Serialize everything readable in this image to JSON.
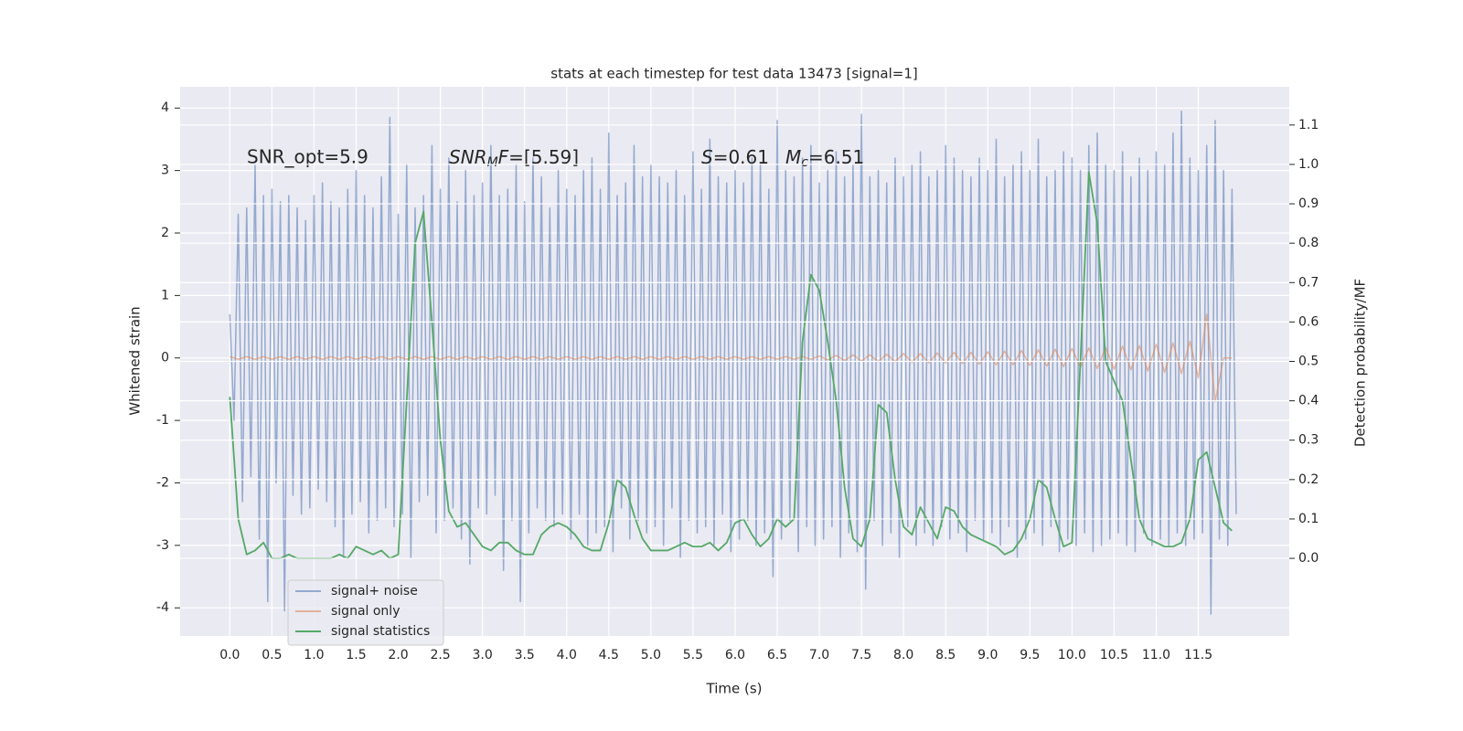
{
  "chart_data": {
    "type": "line",
    "title": "stats at each timestep for test data 13473 [signal=1]",
    "x_label": "Time (s)",
    "y_label": "Whitened strain",
    "y2_label": "Detection probability/MF",
    "annotations": [
      "SNR_opt=5.9",
      [
        "SNR",
        "M",
        "F",
        "=[5.59]"
      ],
      [
        "S",
        "=0.61"
      ],
      [
        "M",
        "c",
        "=6.51"
      ]
    ],
    "xlim": [
      -0.59,
      12.58
    ],
    "xticks": [
      {
        "value": 0,
        "label": "0.0"
      },
      0.5,
      {
        "value": 1,
        "label": "1.0"
      },
      1.5,
      {
        "value": 2,
        "label": "2.0"
      },
      2.5,
      {
        "value": 3,
        "label": "3.0"
      },
      3.5,
      {
        "value": 4,
        "label": "4.0"
      },
      4.5,
      {
        "value": 5,
        "label": "5.0"
      },
      5.5,
      {
        "value": 6,
        "label": "6.0"
      },
      6.5,
      {
        "value": 7,
        "label": "7.0"
      },
      7.5,
      {
        "value": 8,
        "label": "8.0"
      },
      8.5,
      {
        "value": 9,
        "label": "9.0"
      },
      9.5,
      {
        "value": 10,
        "label": "10.0"
      },
      10.5,
      {
        "value": 11,
        "label": "11.0"
      },
      11.5
    ],
    "ylim": [
      -4.45,
      4.34
    ],
    "yticks": [
      -4,
      -3,
      -2,
      -1,
      0,
      1,
      2,
      3,
      4
    ],
    "y2lim": [
      -0.197,
      1.197
    ],
    "y2ticks": [
      {
        "value": 0,
        "label": "0.0"
      },
      0.1,
      0.2,
      0.3,
      0.4,
      0.5,
      0.6,
      0.7,
      0.8,
      0.9,
      {
        "value": 1,
        "label": "1.0"
      },
      1.1
    ],
    "grid": true,
    "legend": "lower left",
    "series": [
      {
        "name": "signal+ noise",
        "color": "#4c72b0",
        "x": [
          0,
          0.05,
          0.1,
          0.15,
          0.2,
          0.25,
          0.3,
          0.35,
          0.4,
          0.45,
          0.5,
          0.55,
          0.6,
          0.65,
          0.7,
          0.75,
          0.8,
          0.85,
          0.9,
          0.95,
          1,
          1.05,
          1.1,
          1.15,
          1.2,
          1.25,
          1.3,
          1.35,
          1.4,
          1.45,
          1.5,
          1.55,
          1.6,
          1.65,
          1.7,
          1.75,
          1.8,
          1.85,
          1.9,
          1.95,
          2,
          2.05,
          2.1,
          2.15,
          2.2,
          2.25,
          2.3,
          2.35,
          2.4,
          2.45,
          2.5,
          2.55,
          2.6,
          2.65,
          2.7,
          2.75,
          2.8,
          2.85,
          2.9,
          2.95,
          3,
          3.05,
          3.1,
          3.15,
          3.2,
          3.25,
          3.3,
          3.35,
          3.4,
          3.45,
          3.5,
          3.55,
          3.6,
          3.65,
          3.7,
          3.75,
          3.8,
          3.85,
          3.9,
          3.95,
          4,
          4.05,
          4.1,
          4.15,
          4.2,
          4.25,
          4.3,
          4.35,
          4.4,
          4.45,
          4.5,
          4.55,
          4.6,
          4.65,
          4.7,
          4.75,
          4.8,
          4.85,
          4.9,
          4.95,
          5,
          5.05,
          5.1,
          5.15,
          5.2,
          5.25,
          5.3,
          5.35,
          5.4,
          5.45,
          5.5,
          5.55,
          5.6,
          5.65,
          5.7,
          5.75,
          5.8,
          5.85,
          5.9,
          5.95,
          6,
          6.05,
          6.1,
          6.15,
          6.2,
          6.25,
          6.3,
          6.35,
          6.4,
          6.45,
          6.5,
          6.55,
          6.6,
          6.65,
          6.7,
          6.75,
          6.8,
          6.85,
          6.9,
          6.95,
          7,
          7.05,
          7.1,
          7.15,
          7.2,
          7.25,
          7.3,
          7.35,
          7.4,
          7.45,
          7.5,
          7.55,
          7.6,
          7.65,
          7.7,
          7.75,
          7.8,
          7.85,
          7.9,
          7.95,
          8,
          8.05,
          8.1,
          8.15,
          8.2,
          8.25,
          8.3,
          8.35,
          8.4,
          8.45,
          8.5,
          8.55,
          8.6,
          8.65,
          8.7,
          8.75,
          8.8,
          8.85,
          8.9,
          8.95,
          9,
          9.05,
          9.1,
          9.15,
          9.2,
          9.25,
          9.3,
          9.35,
          9.4,
          9.45,
          9.5,
          9.55,
          9.6,
          9.65,
          9.7,
          9.75,
          9.8,
          9.85,
          9.9,
          9.95,
          10,
          10.05,
          10.1,
          10.15,
          10.2,
          10.25,
          10.3,
          10.35,
          10.4,
          10.45,
          10.5,
          10.55,
          10.6,
          10.65,
          10.7,
          10.75,
          10.8,
          10.85,
          10.9,
          10.95,
          11,
          11.05,
          11.1,
          11.15,
          11.2,
          11.25,
          11.3,
          11.35,
          11.4,
          11.45,
          11.5,
          11.55,
          11.6,
          11.65,
          11.7,
          11.75,
          11.8,
          11.85,
          11.9,
          11.95
        ],
        "values": [
          0.7,
          -1.0,
          2.3,
          -2.3,
          2.4,
          -1.9,
          3.1,
          -2.9,
          2.6,
          -3.9,
          2.7,
          -2.0,
          2.5,
          -4.05,
          2.6,
          -2.2,
          2.4,
          -2.5,
          2.2,
          -2.4,
          2.6,
          -2.1,
          2.8,
          -2.3,
          2.5,
          -2.7,
          2.4,
          -3.2,
          2.7,
          -2.5,
          3.0,
          -2.3,
          2.6,
          -2.8,
          2.4,
          -2.6,
          2.9,
          -2.4,
          3.85,
          -2.7,
          2.3,
          -2.5,
          3.1,
          -3.2,
          2.4,
          -2.3,
          2.6,
          -2.2,
          3.4,
          -2.8,
          2.7,
          -2.6,
          3.2,
          -2.4,
          2.5,
          -2.9,
          3.0,
          -3.3,
          2.6,
          -2.4,
          2.8,
          -2.5,
          3.4,
          -2.2,
          2.6,
          -3.4,
          2.7,
          -2.6,
          3.1,
          -3.9,
          2.5,
          -2.8,
          3.2,
          -2.4,
          2.9,
          -2.6,
          2.4,
          -2.7,
          3.0,
          -2.5,
          2.7,
          -2.9,
          2.6,
          -2.5,
          3.0,
          -3.0,
          3.2,
          -2.8,
          2.7,
          -2.7,
          3.6,
          -3.1,
          2.6,
          -2.4,
          2.8,
          -2.9,
          3.4,
          -2.6,
          2.9,
          -2.8,
          3.1,
          -2.7,
          2.9,
          -3.0,
          2.8,
          -2.4,
          3.0,
          -3.2,
          2.6,
          -2.6,
          3.3,
          -2.8,
          2.7,
          -2.7,
          3.5,
          -3.0,
          2.9,
          -2.5,
          2.8,
          -3.1,
          3.0,
          -2.9,
          2.8,
          -2.6,
          3.2,
          -3.0,
          3.1,
          -2.8,
          2.7,
          -3.5,
          3.8,
          -2.9,
          3.0,
          -2.6,
          2.9,
          -3.1,
          3.2,
          -2.7,
          3.4,
          -3.0,
          2.8,
          -2.9,
          3.0,
          -2.7,
          3.3,
          -3.2,
          2.9,
          -2.8,
          3.1,
          -3.1,
          3.9,
          -3.7,
          2.9,
          -2.6,
          3.0,
          -3.0,
          2.8,
          -2.8,
          3.2,
          -3.2,
          2.9,
          -2.7,
          3.1,
          -3.0,
          3.3,
          -2.8,
          2.9,
          -3.0,
          3.0,
          -2.7,
          3.4,
          -2.9,
          3.2,
          -2.8,
          3.0,
          -3.1,
          2.9,
          -2.6,
          3.2,
          -2.9,
          3.0,
          -2.8,
          3.5,
          -3.0,
          2.9,
          -2.7,
          3.1,
          -3.2,
          3.3,
          -2.9,
          3.0,
          -2.8,
          3.5,
          -3.0,
          2.9,
          -2.7,
          3.0,
          -3.1,
          3.3,
          -2.9,
          3.2,
          -3.0,
          3.0,
          -2.8,
          3.4,
          -3.1,
          3.6,
          -3.0,
          3.1,
          -2.9,
          3.0,
          -2.8,
          3.3,
          -3.0,
          2.9,
          -3.1,
          3.2,
          -2.8,
          3.0,
          -3.0,
          3.3,
          -2.9,
          3.1,
          -3.0,
          3.6,
          -2.8,
          3.95,
          -3.0,
          3.2,
          -2.9,
          3.0,
          -2.8,
          3.4,
          -4.1,
          3.8,
          -2.9,
          3.0,
          -3.0,
          2.7,
          -2.5
        ]
      },
      {
        "name": "signal only",
        "color": "#dd8452",
        "x": [
          0,
          0.1,
          0.2,
          0.3,
          0.4,
          0.5,
          0.6,
          0.7,
          0.8,
          0.9,
          1,
          1.1,
          1.2,
          1.3,
          1.4,
          1.5,
          1.6,
          1.7,
          1.8,
          1.9,
          2,
          2.1,
          2.2,
          2.3,
          2.4,
          2.5,
          2.6,
          2.7,
          2.8,
          2.9,
          3,
          3.1,
          3.2,
          3.3,
          3.4,
          3.5,
          3.6,
          3.7,
          3.8,
          3.9,
          4,
          4.1,
          4.2,
          4.3,
          4.4,
          4.5,
          4.6,
          4.7,
          4.8,
          4.9,
          5,
          5.1,
          5.2,
          5.3,
          5.4,
          5.5,
          5.6,
          5.7,
          5.8,
          5.9,
          6,
          6.1,
          6.2,
          6.3,
          6.4,
          6.5,
          6.6,
          6.7,
          6.8,
          6.9,
          7,
          7.1,
          7.2,
          7.3,
          7.4,
          7.5,
          7.6,
          7.7,
          7.8,
          7.9,
          8,
          8.1,
          8.2,
          8.3,
          8.4,
          8.5,
          8.6,
          8.7,
          8.8,
          8.9,
          9,
          9.1,
          9.2,
          9.3,
          9.4,
          9.5,
          9.6,
          9.7,
          9.8,
          9.9,
          10,
          10.1,
          10.2,
          10.3,
          10.4,
          10.5,
          10.6,
          10.7,
          10.8,
          10.9,
          11,
          11.1,
          11.2,
          11.3,
          11.4,
          11.5,
          11.6,
          11.7,
          11.8,
          11.9
        ],
        "values": [
          0.02,
          -0.02,
          0.02,
          -0.02,
          0.02,
          -0.02,
          0.02,
          -0.02,
          0.02,
          -0.02,
          0.02,
          -0.02,
          0.02,
          -0.02,
          0.02,
          -0.02,
          0.02,
          -0.02,
          0.02,
          -0.02,
          0.02,
          -0.02,
          0.02,
          -0.02,
          0.02,
          -0.02,
          0.02,
          -0.02,
          0.02,
          -0.02,
          0.02,
          -0.02,
          0.02,
          -0.02,
          0.02,
          -0.02,
          0.02,
          -0.02,
          0.02,
          -0.02,
          0.02,
          -0.02,
          0.02,
          -0.02,
          0.02,
          -0.02,
          0.02,
          -0.02,
          0.02,
          -0.02,
          0.02,
          -0.02,
          0.02,
          -0.02,
          0.02,
          -0.02,
          0.02,
          -0.02,
          0.02,
          -0.02,
          0.02,
          -0.02,
          0.02,
          -0.02,
          0.02,
          -0.02,
          0.02,
          -0.02,
          0.02,
          -0.02,
          0.03,
          -0.03,
          0.04,
          -0.04,
          0.05,
          -0.05,
          0.05,
          -0.06,
          0.06,
          -0.06,
          0.07,
          -0.07,
          0.07,
          -0.08,
          0.08,
          -0.08,
          0.09,
          -0.09,
          0.09,
          -0.1,
          0.1,
          -0.11,
          0.11,
          -0.11,
          0.12,
          -0.12,
          0.13,
          -0.13,
          0.14,
          -0.14,
          0.15,
          -0.15,
          0.16,
          -0.17,
          0.17,
          -0.18,
          0.19,
          -0.19,
          0.2,
          -0.21,
          0.22,
          -0.23,
          0.24,
          -0.25,
          0.27,
          -0.32,
          0.7,
          -0.7,
          0,
          0
        ]
      },
      {
        "name": "signal statistics",
        "color": "#55a868",
        "axis": "y2",
        "x": [
          0,
          0.1,
          0.2,
          0.3,
          0.4,
          0.5,
          0.6,
          0.7,
          0.8,
          0.9,
          1,
          1.1,
          1.2,
          1.3,
          1.4,
          1.5,
          1.6,
          1.7,
          1.8,
          1.9,
          2,
          2.1,
          2.2,
          2.3,
          2.4,
          2.5,
          2.6,
          2.7,
          2.8,
          2.9,
          3,
          3.1,
          3.2,
          3.3,
          3.4,
          3.5,
          3.6,
          3.7,
          3.8,
          3.9,
          4,
          4.1,
          4.2,
          4.3,
          4.4,
          4.5,
          4.6,
          4.7,
          4.8,
          4.9,
          5,
          5.1,
          5.2,
          5.3,
          5.4,
          5.5,
          5.6,
          5.7,
          5.8,
          5.9,
          6,
          6.1,
          6.2,
          6.3,
          6.4,
          6.5,
          6.6,
          6.7,
          6.8,
          6.9,
          7,
          7.1,
          7.2,
          7.3,
          7.4,
          7.5,
          7.6,
          7.7,
          7.8,
          7.9,
          8,
          8.1,
          8.2,
          8.3,
          8.4,
          8.5,
          8.6,
          8.7,
          8.8,
          8.9,
          9,
          9.1,
          9.2,
          9.3,
          9.4,
          9.5,
          9.6,
          9.7,
          9.8,
          9.9,
          10,
          10.1,
          10.2,
          10.3,
          10.4,
          10.5,
          10.6,
          10.7,
          10.8,
          10.9,
          11,
          11.1,
          11.2,
          11.3,
          11.4,
          11.5,
          11.6,
          11.7,
          11.8,
          11.9
        ],
        "values": [
          0.41,
          0.1,
          0.01,
          0.02,
          0.04,
          0.0,
          0.0,
          0.01,
          0.0,
          0.0,
          0.0,
          0.0,
          0.0,
          0.01,
          0.0,
          0.03,
          0.02,
          0.01,
          0.02,
          0.0,
          0.01,
          0.4,
          0.8,
          0.88,
          0.6,
          0.3,
          0.12,
          0.08,
          0.09,
          0.06,
          0.03,
          0.02,
          0.04,
          0.04,
          0.02,
          0.01,
          0.01,
          0.06,
          0.08,
          0.09,
          0.08,
          0.06,
          0.03,
          0.02,
          0.02,
          0.09,
          0.2,
          0.18,
          0.11,
          0.05,
          0.02,
          0.02,
          0.02,
          0.03,
          0.04,
          0.03,
          0.03,
          0.04,
          0.02,
          0.04,
          0.09,
          0.1,
          0.06,
          0.03,
          0.05,
          0.1,
          0.08,
          0.1,
          0.55,
          0.72,
          0.68,
          0.55,
          0.4,
          0.18,
          0.05,
          0.03,
          0.1,
          0.39,
          0.37,
          0.2,
          0.08,
          0.06,
          0.13,
          0.09,
          0.05,
          0.13,
          0.12,
          0.08,
          0.06,
          0.05,
          0.04,
          0.03,
          0.01,
          0.02,
          0.05,
          0.1,
          0.2,
          0.18,
          0.1,
          0.03,
          0.04,
          0.5,
          0.98,
          0.85,
          0.5,
          0.45,
          0.4,
          0.25,
          0.1,
          0.05,
          0.04,
          0.03,
          0.03,
          0.04,
          0.1,
          0.25,
          0.27,
          0.18,
          0.09,
          0.07
        ]
      }
    ]
  }
}
